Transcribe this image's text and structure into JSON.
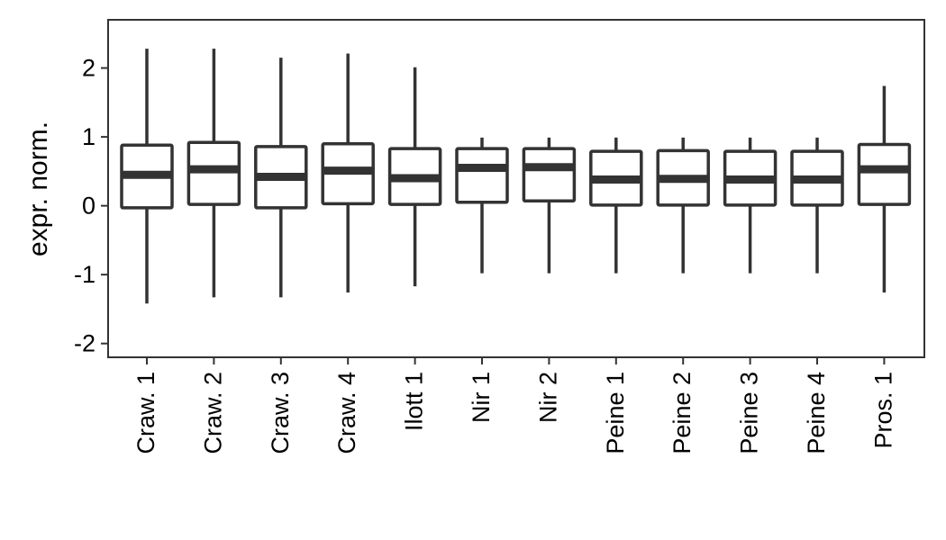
{
  "chart_data": {
    "type": "box",
    "ylabel": "expr. norm.",
    "ylim": [
      -2.2,
      2.7
    ],
    "yticks": [
      -2,
      -1,
      0,
      1,
      2
    ],
    "ytick_labels": [
      "-2",
      "-1",
      "0",
      "1",
      "2"
    ],
    "categories": [
      "Craw. 1",
      "Craw. 2",
      "Craw. 3",
      "Craw. 4",
      "Ilott 1",
      "Nir 1",
      "Nir 2",
      "Peine 1",
      "Peine 2",
      "Peine 3",
      "Peine 4",
      "Pros. 1"
    ],
    "boxes": [
      {
        "whisker_low": -1.42,
        "q1": -0.03,
        "median": 0.45,
        "q3": 0.88,
        "whisker_high": 2.28
      },
      {
        "whisker_low": -1.33,
        "q1": 0.02,
        "median": 0.53,
        "q3": 0.92,
        "whisker_high": 2.28
      },
      {
        "whisker_low": -1.33,
        "q1": -0.03,
        "median": 0.42,
        "q3": 0.86,
        "whisker_high": 2.15
      },
      {
        "whisker_low": -1.26,
        "q1": 0.03,
        "median": 0.51,
        "q3": 0.9,
        "whisker_high": 2.21
      },
      {
        "whisker_low": -1.17,
        "q1": 0.02,
        "median": 0.4,
        "q3": 0.83,
        "whisker_high": 2.01
      },
      {
        "whisker_low": -0.98,
        "q1": 0.05,
        "median": 0.55,
        "q3": 0.83,
        "whisker_high": 0.99
      },
      {
        "whisker_low": -0.98,
        "q1": 0.07,
        "median": 0.56,
        "q3": 0.83,
        "whisker_high": 0.99
      },
      {
        "whisker_low": -0.98,
        "q1": 0.01,
        "median": 0.38,
        "q3": 0.79,
        "whisker_high": 0.99
      },
      {
        "whisker_low": -0.98,
        "q1": 0.01,
        "median": 0.39,
        "q3": 0.8,
        "whisker_high": 0.99
      },
      {
        "whisker_low": -0.98,
        "q1": 0.01,
        "median": 0.38,
        "q3": 0.79,
        "whisker_high": 0.99
      },
      {
        "whisker_low": -0.98,
        "q1": 0.01,
        "median": 0.38,
        "q3": 0.79,
        "whisker_high": 0.99
      },
      {
        "whisker_low": -1.26,
        "q1": 0.02,
        "median": 0.53,
        "q3": 0.89,
        "whisker_high": 1.74
      }
    ],
    "grid": false,
    "legend": "none",
    "colors": {
      "box_stroke": "#333333",
      "box_fill": "#ffffff",
      "axis": "#333333"
    }
  }
}
